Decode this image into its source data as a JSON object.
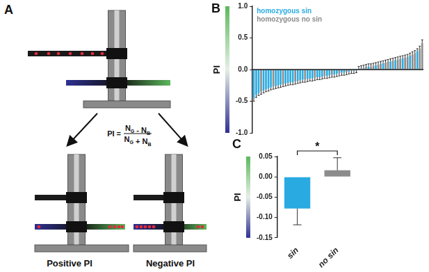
{
  "diagram": {
    "title": "A",
    "formula": {
      "lhs": "PI =",
      "numerator": [
        {
          "text": "N",
          "sub": "G"
        },
        {
          "text": " - "
        },
        {
          "text": "N",
          "sub": "B"
        }
      ],
      "denominator": [
        {
          "text": "N",
          "sub": "G"
        },
        {
          "text": " + "
        },
        {
          "text": "N",
          "sub": "B"
        }
      ]
    },
    "labels": [
      "Positive PI",
      "Negative PI"
    ]
  },
  "chart_data": [
    {
      "type": "bar",
      "title": "B",
      "y_label": "PI",
      "categories": [
        null,
        null,
        null,
        null,
        null,
        null,
        null,
        null,
        null,
        null,
        null,
        null,
        null,
        null,
        null,
        null,
        null,
        null,
        null,
        null,
        null,
        null,
        null,
        null,
        null,
        null,
        null,
        null,
        null,
        null,
        null,
        null,
        null,
        null,
        null,
        null,
        null,
        null,
        null,
        null,
        null,
        null,
        null,
        null,
        null,
        null,
        null,
        null,
        null,
        null,
        null,
        null,
        null,
        null,
        null,
        null,
        null,
        null,
        null,
        null,
        null,
        null,
        null,
        null,
        null,
        null,
        null,
        null,
        null,
        null
      ],
      "series": [
        {
          "name": "homozygous sin",
          "color": "#29abe2",
          "values": [
            -0.45,
            -0.4,
            -0.37,
            null,
            -0.33,
            -0.31,
            -0.3,
            -0.28,
            null,
            -0.26,
            -0.25,
            -0.24,
            null,
            -0.22,
            -0.21,
            -0.2,
            -0.2,
            null,
            -0.18,
            -0.17,
            -0.16,
            null,
            -0.15,
            -0.14,
            -0.14,
            null,
            -0.12,
            -0.12,
            -0.11,
            null,
            -0.1,
            -0.09,
            null,
            -0.08,
            -0.07,
            null,
            -0.05,
            -0.05,
            null,
            -0.03,
            null,
            -0.02,
            null,
            null,
            0.02,
            null,
            null,
            0.05,
            null,
            null,
            0.07,
            null,
            null,
            0.1,
            null,
            null,
            0.13,
            null,
            0.15,
            null,
            null,
            0.18,
            null,
            null,
            0.22,
            null,
            null,
            0.29,
            null,
            null
          ],
          "errors": [
            0.05,
            0.04,
            0.04,
            null,
            0.04,
            0.04,
            0.04,
            0.04,
            null,
            0.04,
            0.04,
            0.04,
            null,
            0.04,
            0.04,
            0.04,
            0.04,
            null,
            0.04,
            0.04,
            0.04,
            null,
            0.04,
            0.04,
            0.04,
            null,
            0.04,
            0.04,
            0.04,
            null,
            0.04,
            0.04,
            null,
            0.04,
            0.04,
            null,
            0.04,
            0.04,
            null,
            0.04,
            null,
            0.04,
            null,
            null,
            0.04,
            null,
            null,
            0.04,
            null,
            null,
            0.04,
            null,
            null,
            0.04,
            null,
            null,
            0.04,
            null,
            0.04,
            null,
            null,
            0.04,
            null,
            null,
            0.04,
            null,
            null,
            0.04,
            null,
            null
          ]
        },
        {
          "name": "homozygous no sin",
          "color": "#8c8c8c",
          "values": [
            null,
            null,
            null,
            -0.35,
            null,
            null,
            null,
            null,
            -0.27,
            null,
            null,
            null,
            -0.23,
            null,
            null,
            null,
            null,
            -0.19,
            null,
            null,
            null,
            -0.16,
            null,
            null,
            null,
            -0.13,
            null,
            null,
            null,
            -0.1,
            null,
            null,
            -0.08,
            null,
            null,
            -0.06,
            null,
            null,
            -0.04,
            null,
            -0.02,
            null,
            -0.01,
            0.01,
            null,
            0.03,
            0.04,
            null,
            0.05,
            0.06,
            null,
            0.08,
            0.09,
            null,
            0.11,
            0.12,
            null,
            0.14,
            null,
            0.16,
            0.17,
            null,
            0.19,
            0.2,
            null,
            0.24,
            0.26,
            null,
            0.33,
            0.42
          ],
          "errors": [
            null,
            null,
            null,
            0.04,
            null,
            null,
            null,
            null,
            0.04,
            null,
            null,
            null,
            0.04,
            null,
            null,
            null,
            null,
            0.04,
            null,
            null,
            null,
            0.04,
            null,
            null,
            null,
            0.04,
            null,
            null,
            null,
            0.04,
            null,
            null,
            0.04,
            null,
            null,
            0.04,
            null,
            null,
            0.04,
            null,
            0.04,
            null,
            0.04,
            0.04,
            null,
            0.04,
            0.04,
            null,
            0.04,
            0.04,
            null,
            0.04,
            0.04,
            null,
            0.04,
            0.04,
            null,
            0.04,
            null,
            0.04,
            0.04,
            null,
            0.04,
            0.04,
            null,
            0.04,
            0.04,
            null,
            0.04,
            0.05
          ]
        }
      ],
      "ylim": [
        -1,
        1
      ],
      "yticks": [
        {
          "value": -1,
          "label": "-1.0"
        },
        {
          "value": -0.5,
          "label": "-0.5"
        },
        {
          "value": 0,
          "label": "0.0"
        },
        {
          "value": 0.5,
          "label": "0.5"
        },
        {
          "value": 1,
          "label": "1.0"
        }
      ],
      "grid": false,
      "legend": "upper left",
      "tick_labels": "y"
    },
    {
      "type": "bar",
      "title": "C",
      "y_label": "PI",
      "categories": [
        "sin",
        "no sin"
      ],
      "values": [
        -0.078,
        0.016
      ],
      "errors": [
        0.04,
        0.031
      ],
      "colors": [
        "#29abe2",
        "#8c8c8c"
      ],
      "ylim": [
        -0.15,
        0.05
      ],
      "yticks": [
        {
          "value": -0.15,
          "label": "-0.15"
        },
        {
          "value": -0.1,
          "label": "-0.10"
        },
        {
          "value": -0.05,
          "label": "-0.05"
        },
        {
          "value": 0,
          "label": "0.00"
        },
        {
          "value": 0.05,
          "label": "0.05"
        }
      ],
      "grid": false,
      "annotation": "*"
    }
  ]
}
